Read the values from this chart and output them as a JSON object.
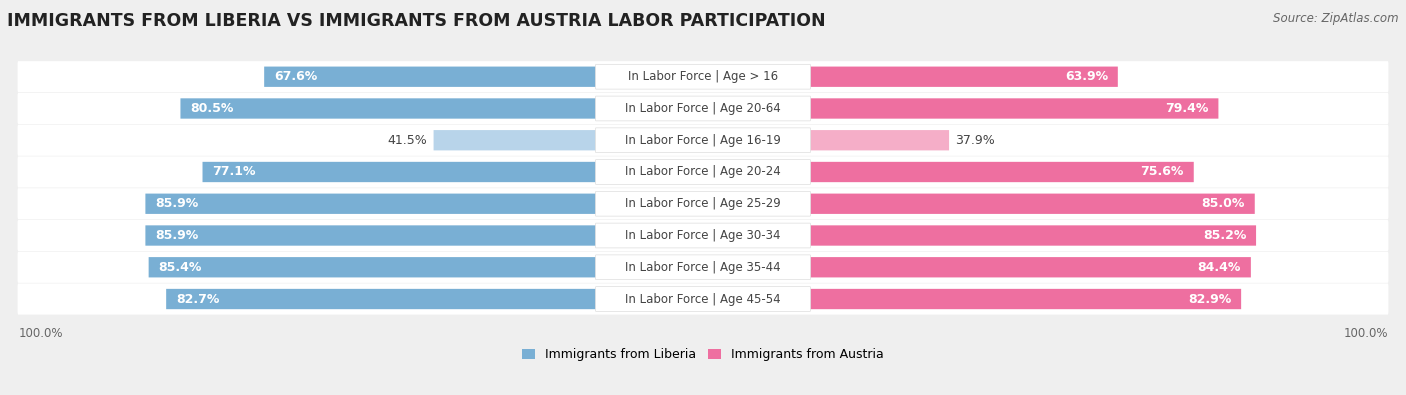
{
  "title": "IMMIGRANTS FROM LIBERIA VS IMMIGRANTS FROM AUSTRIA LABOR PARTICIPATION",
  "source": "Source: ZipAtlas.com",
  "categories": [
    "In Labor Force | Age > 16",
    "In Labor Force | Age 20-64",
    "In Labor Force | Age 16-19",
    "In Labor Force | Age 20-24",
    "In Labor Force | Age 25-29",
    "In Labor Force | Age 30-34",
    "In Labor Force | Age 35-44",
    "In Labor Force | Age 45-54"
  ],
  "liberia_values": [
    67.6,
    80.5,
    41.5,
    77.1,
    85.9,
    85.9,
    85.4,
    82.7
  ],
  "austria_values": [
    63.9,
    79.4,
    37.9,
    75.6,
    85.0,
    85.2,
    84.4,
    82.9
  ],
  "liberia_color": "#79afd4",
  "liberia_color_light": "#b8d4ea",
  "austria_color": "#ee6fa0",
  "austria_color_light": "#f5aec8",
  "bg_color": "#efefef",
  "row_bg_color": "#ffffff",
  "label_color_dark": "#444444",
  "label_color_white": "#ffffff",
  "title_fontsize": 12.5,
  "source_fontsize": 8.5,
  "bar_label_fontsize": 9,
  "category_fontsize": 8.5,
  "legend_fontsize": 9,
  "axis_label_fontsize": 8.5,
  "max_value": 100.0,
  "legend_liberia": "Immigrants from Liberia",
  "legend_austria": "Immigrants from Austria",
  "light_threshold": 55
}
